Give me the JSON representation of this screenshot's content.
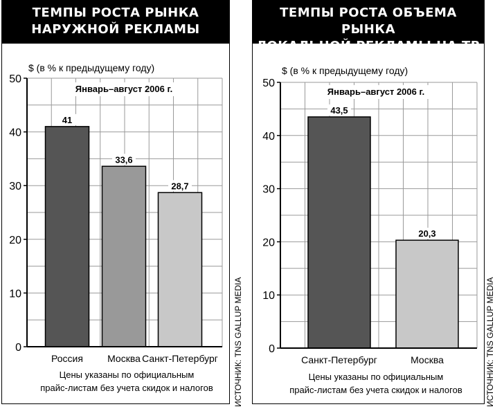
{
  "charts": [
    {
      "title": "ТЕМПЫ РОСТА РЫНКА\nНАРУЖНОЙ РЕКЛАМЫ",
      "source": "ИСТОЧНИК: TNS GALLUP MEDIA",
      "colors": [
        "#555555",
        "#999999",
        "#c8c8c8"
      ]
    },
    {
      "title": "ТЕМПЫ РОСТА ОБЪЕМА РЫНКА\nЛОКАЛЬНОЙ РЕКЛАМЫ НА ТВ",
      "source": "ИСТОЧНИК: TNS GALLUP MEDIA",
      "colors": [
        "#555555",
        "#c8c8c8"
      ]
    }
  ],
  "chart_data": [
    {
      "type": "bar",
      "categories": [
        "Россия",
        "Москва",
        "Санкт-Петербург"
      ],
      "values": [
        41,
        33.6,
        28.7
      ],
      "value_labels": [
        "41",
        "33,6",
        "28,7"
      ],
      "ylabel": "$ (в % к предыдущему году)",
      "annotation": "Январь–август 2006 г.",
      "note": "Цены указаны по официальным\nпрайс-листам без учета скидок и налогов",
      "ylim": [
        0,
        50
      ],
      "yticks": [
        0,
        10,
        20,
        30,
        40,
        50
      ],
      "grid": true
    },
    {
      "type": "bar",
      "categories": [
        "Санкт-Петербург",
        "Москва"
      ],
      "values": [
        43.5,
        20.3
      ],
      "value_labels": [
        "43,5",
        "20,3"
      ],
      "ylabel": "$ (в % к предыдущему году)",
      "annotation": "Январь–август 2006 г.",
      "note": "Цены указаны по официальным\nпрайс-листам без учета скидок и налогов",
      "ylim": [
        0,
        50
      ],
      "yticks": [
        0,
        10,
        20,
        30,
        40,
        50
      ],
      "grid": true
    }
  ]
}
